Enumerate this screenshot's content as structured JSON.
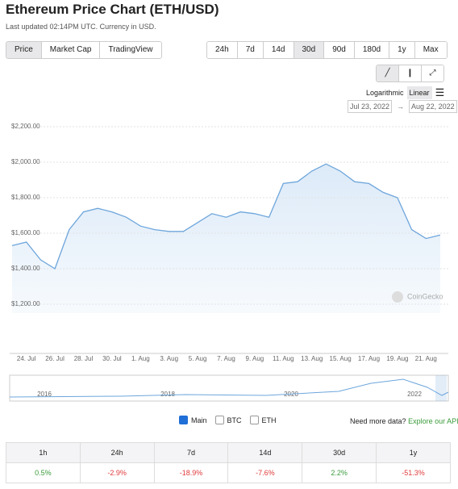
{
  "header": {
    "title": "Ethereum Price Chart (ETH/USD)",
    "updated": "Last updated 02:14PM UTC. Currency in USD."
  },
  "tabs": [
    "Price",
    "Market Cap",
    "TradingView"
  ],
  "ranges": [
    "24h",
    "7d",
    "14d",
    "30d",
    "90d",
    "180d",
    "1y",
    "Max"
  ],
  "scale": {
    "log": "Logarithmic",
    "linear": "Linear"
  },
  "range": {
    "from": "Jul 23, 2022",
    "separator": "→",
    "to": "Aug 22, 2022"
  },
  "watermark": "CoinGecko",
  "chart_data": {
    "type": "line",
    "color": "#6ea6dc",
    "grid": true,
    "log": false,
    "categories": [
      null,
      "24. Jul",
      null,
      "26. Jul",
      null,
      "28. Jul",
      null,
      "30. Jul",
      null,
      "1. Aug",
      null,
      "3. Aug",
      null,
      "5. Aug",
      null,
      "7. Aug",
      null,
      "9. Aug",
      null,
      "11. Aug",
      null,
      "13. Aug",
      null,
      "15. Aug",
      null,
      "17. Aug",
      null,
      "19. Aug",
      null,
      "21. Aug",
      null
    ],
    "series": [
      {
        "name": "Main",
        "color": "#6ea6dc",
        "values": [
          1530,
          1550,
          1450,
          1400,
          1620,
          1720,
          1740,
          1720,
          1690,
          1640,
          1620,
          1610,
          1610,
          1660,
          1710,
          1690,
          1720,
          1710,
          1690,
          1880,
          1890,
          1950,
          1990,
          1950,
          1890,
          1880,
          1830,
          1800,
          1620,
          1570,
          1590
        ]
      }
    ],
    "ylim": [
      1150,
      2250
    ],
    "yticks": [
      {
        "value": 1200,
        "label": "$1,200.00"
      },
      {
        "value": 1400,
        "label": "$1,400.00"
      },
      {
        "value": 1600,
        "label": "$1,600.00"
      },
      {
        "value": 1800,
        "label": "$1,800.00"
      },
      {
        "value": 2000,
        "label": "$2,000.00"
      },
      {
        "value": 2200,
        "label": "$2,200.00"
      }
    ]
  },
  "navigator": [
    "2016",
    "2018",
    "2020",
    "2022"
  ],
  "legend": {
    "main": "Main",
    "btc": "BTC",
    "eth": "ETH"
  },
  "more": {
    "text": "Need more data?",
    "link": "Explore our API"
  },
  "table": {
    "header": [
      "1h",
      "24h",
      "7d",
      "14d",
      "30d",
      "1y"
    ],
    "rows": [
      [
        "0.5%",
        "-2.9%",
        "-18.9%",
        "-7.6%",
        "2.2%",
        "-51.3%"
      ]
    ]
  }
}
